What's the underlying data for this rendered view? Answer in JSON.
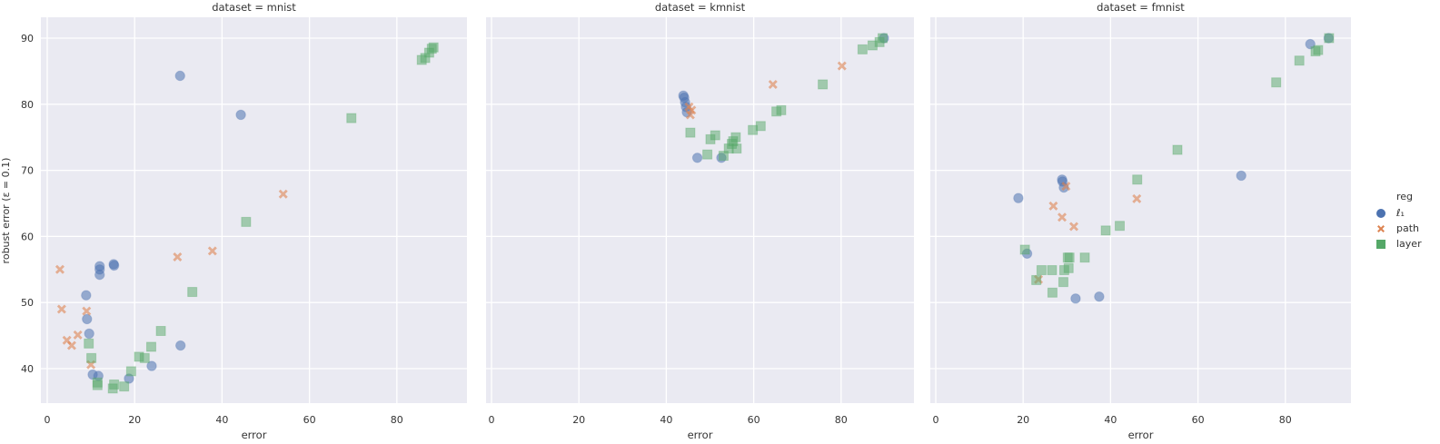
{
  "chart_data": {
    "type": "scatter",
    "facet_variable": "dataset",
    "xlabel": "error",
    "ylabel": "robust error (ε = 0.1)",
    "xlim": [
      -2,
      96
    ],
    "ylim": [
      34.5,
      93.5
    ],
    "xticks": [
      0,
      20,
      40,
      60,
      80
    ],
    "yticks": [
      40,
      50,
      60,
      70,
      80,
      90
    ],
    "grid": true,
    "legend": {
      "title": "reg",
      "position": "right",
      "entries": [
        {
          "label": "ℓ₁",
          "marker": "circle",
          "color": "#4c72b0"
        },
        {
          "label": "path",
          "marker": "x",
          "color": "#dd8452"
        },
        {
          "label": "layer",
          "marker": "square",
          "color": "#55a868"
        }
      ]
    },
    "panels": [
      {
        "title": "dataset = mnist",
        "series": [
          {
            "name": "ℓ₁",
            "points": [
              [
                30.4,
                84.3
              ],
              [
                44.3,
                78.4
              ],
              [
                12,
                55.5
              ],
              [
                12,
                55
              ],
              [
                15.2,
                55.8
              ],
              [
                15.3,
                55.6
              ],
              [
                12,
                54.2
              ],
              [
                8.9,
                51.1
              ],
              [
                9.1,
                47.5
              ],
              [
                9.6,
                45.3
              ],
              [
                30.5,
                43.5
              ],
              [
                23.9,
                40.4
              ],
              [
                10.4,
                39.1
              ],
              [
                11.7,
                38.9
              ],
              [
                18.7,
                38.5
              ]
            ]
          },
          {
            "name": "path",
            "points": [
              [
                54,
                66.4
              ],
              [
                29.8,
                56.9
              ],
              [
                37.8,
                57.8
              ],
              [
                2.9,
                55
              ],
              [
                3.3,
                49
              ],
              [
                9,
                48.7
              ],
              [
                7,
                45.1
              ],
              [
                4.5,
                44.3
              ],
              [
                5.6,
                43.5
              ],
              [
                10,
                40.6
              ]
            ]
          },
          {
            "name": "layer",
            "points": [
              [
                88.4,
                88.6
              ],
              [
                88,
                88.4
              ],
              [
                87.4,
                87.8
              ],
              [
                86.5,
                87
              ],
              [
                85.7,
                86.7
              ],
              [
                69.6,
                77.9
              ],
              [
                45.5,
                62.2
              ],
              [
                33.2,
                51.6
              ],
              [
                26,
                45.7
              ],
              [
                9.5,
                43.8
              ],
              [
                23.8,
                43.3
              ],
              [
                21,
                41.8
              ],
              [
                22.3,
                41.6
              ],
              [
                10.1,
                41.6
              ],
              [
                19.2,
                39.6
              ],
              [
                11.5,
                37.9
              ],
              [
                11.5,
                37.5
              ],
              [
                15.3,
                37.6
              ],
              [
                17.6,
                37.3
              ],
              [
                15,
                37
              ]
            ]
          }
        ]
      },
      {
        "title": "dataset = kmnist",
        "series": [
          {
            "name": "ℓ₁",
            "points": [
              [
                43.9,
                81.3
              ],
              [
                44.1,
                81
              ],
              [
                44.3,
                80.3
              ],
              [
                44.5,
                79.6
              ],
              [
                44.7,
                78.8
              ],
              [
                89.8,
                90
              ],
              [
                47.1,
                71.9
              ],
              [
                52.6,
                71.9
              ]
            ]
          },
          {
            "name": "path",
            "points": [
              [
                64.4,
                83
              ],
              [
                80.2,
                85.8
              ],
              [
                45.2,
                79.6
              ],
              [
                45.8,
                79.1
              ],
              [
                45.5,
                78.4
              ]
            ]
          },
          {
            "name": "layer",
            "points": [
              [
                89.5,
                90
              ],
              [
                88.8,
                89.4
              ],
              [
                87.2,
                88.9
              ],
              [
                84.9,
                88.3
              ],
              [
                75.8,
                83
              ],
              [
                66.3,
                79.1
              ],
              [
                65.2,
                78.9
              ],
              [
                61.6,
                76.7
              ],
              [
                59.8,
                76.1
              ],
              [
                45.5,
                75.7
              ],
              [
                51.2,
                75.3
              ],
              [
                50.1,
                74.7
              ],
              [
                55.9,
                75
              ],
              [
                55.3,
                74.4
              ],
              [
                55,
                74
              ],
              [
                54.3,
                73.3
              ],
              [
                56.1,
                73.3
              ],
              [
                49.4,
                72.4
              ],
              [
                53.1,
                72.2
              ]
            ]
          }
        ]
      },
      {
        "title": "dataset = fmnist",
        "series": [
          {
            "name": "ℓ₁",
            "points": [
              [
                85.7,
                89.1
              ],
              [
                89.9,
                90
              ],
              [
                69.9,
                69.2
              ],
              [
                28.9,
                68.6
              ],
              [
                29,
                68.3
              ],
              [
                29.3,
                67.4
              ],
              [
                18.9,
                65.8
              ],
              [
                20.9,
                57.4
              ],
              [
                32,
                50.6
              ],
              [
                37.4,
                50.9
              ]
            ]
          },
          {
            "name": "path",
            "points": [
              [
                29.8,
                67.6
              ],
              [
                46,
                65.7
              ],
              [
                26.9,
                64.6
              ],
              [
                28.9,
                62.9
              ],
              [
                31.6,
                61.5
              ],
              [
                23.5,
                53.5
              ]
            ]
          },
          {
            "name": "layer",
            "points": [
              [
                90,
                90
              ],
              [
                87.5,
                88.2
              ],
              [
                86.9,
                88
              ],
              [
                83.2,
                86.6
              ],
              [
                77.9,
                83.3
              ],
              [
                55.3,
                73.1
              ],
              [
                46.1,
                68.6
              ],
              [
                42.1,
                61.6
              ],
              [
                38.9,
                60.9
              ],
              [
                20.4,
                58
              ],
              [
                30.2,
                56.8
              ],
              [
                30.6,
                56.8
              ],
              [
                34.1,
                56.8
              ],
              [
                24.2,
                54.9
              ],
              [
                26.6,
                54.9
              ],
              [
                29.4,
                54.9
              ],
              [
                30.4,
                55.2
              ],
              [
                23,
                53.4
              ],
              [
                29.2,
                53.1
              ],
              [
                26.7,
                51.5
              ]
            ]
          }
        ]
      }
    ]
  }
}
